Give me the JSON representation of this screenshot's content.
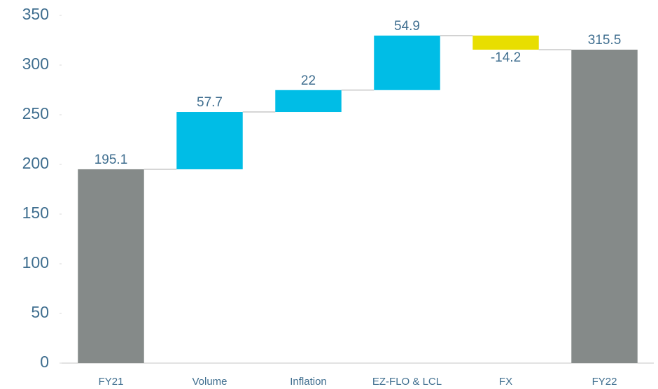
{
  "chart_data": {
    "type": "waterfall",
    "categories": [
      "FY21",
      "Volume",
      "Inflation",
      "EZ-FLO & LCL",
      "FX",
      "FY22"
    ],
    "values": [
      195.1,
      57.7,
      22,
      54.9,
      -14.2,
      315.5
    ],
    "measure": [
      "absolute",
      "relative",
      "relative",
      "relative",
      "relative",
      "absolute"
    ],
    "colors": [
      "#858a89",
      "#00bde6",
      "#00bde6",
      "#00bde6",
      "#e8de00",
      "#858a89"
    ],
    "ylim": [
      0,
      350
    ],
    "yticks": [
      0,
      50,
      100,
      150,
      200,
      250,
      300,
      350
    ],
    "grid": false
  }
}
